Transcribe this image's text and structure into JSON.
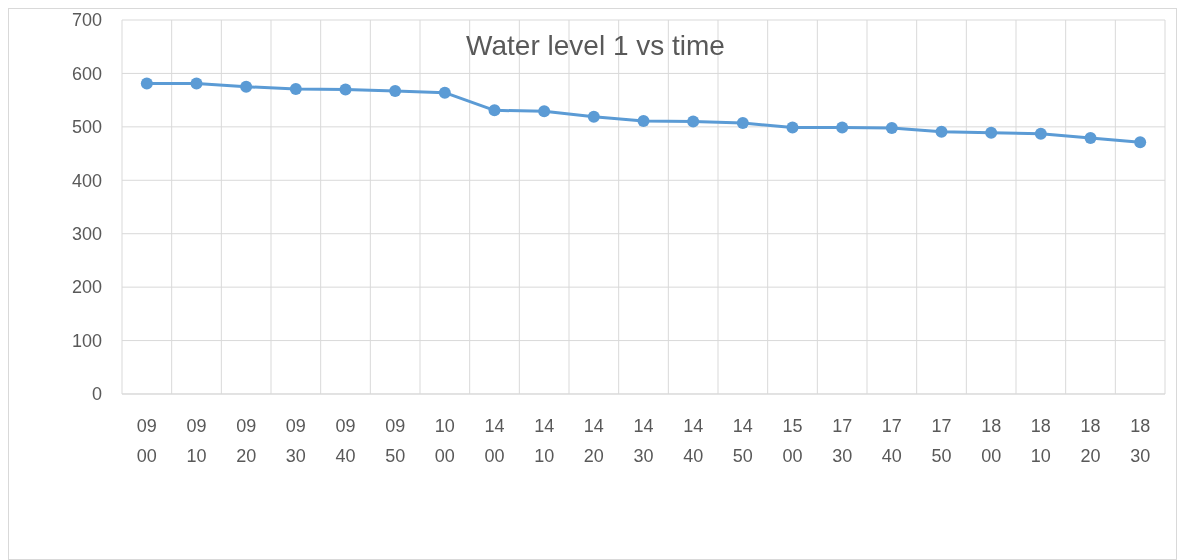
{
  "chart_data": {
    "type": "line",
    "title": "Water level 1 vs time",
    "categories": [
      "09 00",
      "09 10",
      "09 20",
      "09 30",
      "09 40",
      "09 50",
      "10 00",
      "14 00",
      "14 10",
      "14 20",
      "14 30",
      "14 40",
      "14 50",
      "15 00",
      "17 30",
      "17 40",
      "17 50",
      "18 00",
      "18 10",
      "18 20",
      "18 30"
    ],
    "series": [
      {
        "color": "#5b9bd5",
        "values": [
          581,
          581,
          575,
          571,
          570,
          567,
          564,
          531,
          529,
          519,
          511,
          510,
          507,
          499,
          499,
          498,
          491,
          489,
          487,
          479,
          471
        ]
      }
    ],
    "ylim": [
      0,
      700
    ],
    "yticks": [
      0,
      100,
      200,
      300,
      400,
      500,
      600,
      700
    ],
    "grid": true,
    "marker": "circle",
    "line_style": "solid"
  }
}
